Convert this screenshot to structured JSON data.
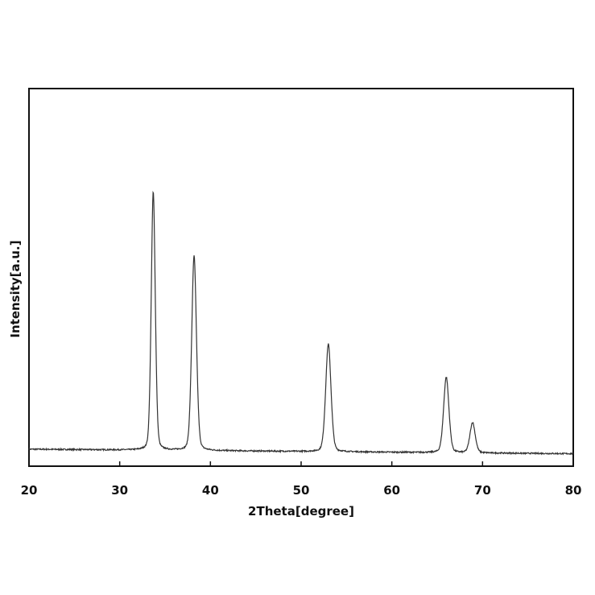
{
  "chart_data": {
    "type": "line",
    "title": "",
    "xlabel": "2Theta[degree]",
    "ylabel": "Intensity[a.u.]",
    "xlim": [
      20,
      80
    ],
    "ylim": [
      0,
      100
    ],
    "xticks": [
      20,
      30,
      40,
      50,
      60,
      70,
      80
    ],
    "yticks": [],
    "grid": false,
    "legend": "none",
    "line_color": "#333333",
    "baseline": 4.5,
    "baseline_slope": -0.02,
    "peaks": [
      {
        "x": 33.7,
        "y": 68.5,
        "width": 0.23
      },
      {
        "x": 38.2,
        "y": 51.5,
        "width": 0.27
      },
      {
        "x": 53.0,
        "y": 28.5,
        "width": 0.3
      },
      {
        "x": 66.0,
        "y": 20.0,
        "width": 0.3
      },
      {
        "x": 68.9,
        "y": 8.0,
        "width": 0.3
      }
    ]
  }
}
